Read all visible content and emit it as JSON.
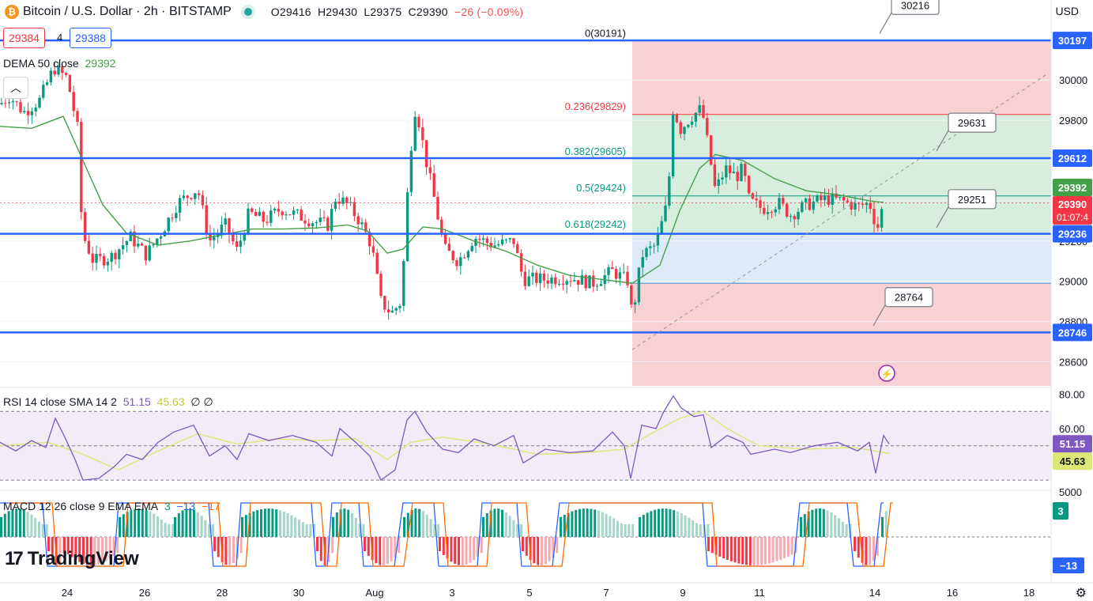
{
  "header": {
    "symbol": "Bitcoin / U.S. Dollar · 2h · BITSTAMP",
    "coin_glyph": "₿",
    "open": "O29416",
    "high": "H29430",
    "low": "L29375",
    "close": "C29390",
    "change": "−26 (−0.09%)",
    "bid": "29384",
    "spread": "4",
    "ask": "29388",
    "currency": "USD",
    "dema_name": "DEMA 50 close",
    "dema_value": "29392",
    "rsi_name": "RSI 14 close SMA 14 2",
    "rsi_value": "51.15",
    "rsi_sma": "45.63",
    "rsi_extra": "∅ ∅",
    "macd_name": "MACD 12 26 close 9 EMA EMA",
    "macd_hist": "3",
    "macd_line": "−13",
    "macd_signal": "−17"
  },
  "colors": {
    "blue": "#2962ff",
    "green": "#089981",
    "red": "#f23645",
    "dema": "#43a047",
    "rsi": "#7e57c2",
    "rsi_sma": "#dce775",
    "accent": "#2962ff"
  },
  "chart_data": {
    "type": "candlestick",
    "instrument": "Bitcoin / U.S. Dollar",
    "interval": "2h",
    "exchange": "BITSTAMP",
    "x_ticks": [
      "24",
      "26",
      "28",
      "30",
      "Aug",
      "3",
      "5",
      "7",
      "9",
      "11",
      "14",
      "16",
      "18"
    ],
    "y_ticks": [
      30000,
      29800,
      29600,
      29400,
      29200,
      29000,
      28800,
      28600
    ],
    "ylim": [
      28480,
      30280
    ],
    "horizontal_levels": [
      30197,
      29612,
      29236,
      28746
    ],
    "last_price": 29390,
    "countdown": "01:07:4",
    "dema_last": 29392,
    "fibonacci": [
      {
        "label": "0(30191)",
        "price": 30191
      },
      {
        "label": "0.236(29829)",
        "price": 29829
      },
      {
        "label": "0.382(29605)",
        "price": 29605
      },
      {
        "label": "0.5(29424)",
        "price": 29424
      },
      {
        "label": "0.618(29242)",
        "price": 29242
      }
    ],
    "callouts": [
      30216,
      29631,
      29251,
      28764
    ],
    "close_path": [
      {
        "x": 0,
        "y": 29880
      },
      {
        "x": 12,
        "y": 29920
      },
      {
        "x": 30,
        "y": 29840
      },
      {
        "x": 50,
        "y": 29900
      },
      {
        "x": 68,
        "y": 30060
      },
      {
        "x": 85,
        "y": 30010
      },
      {
        "x": 98,
        "y": 29760
      },
      {
        "x": 104,
        "y": 29240
      },
      {
        "x": 118,
        "y": 29100
      },
      {
        "x": 140,
        "y": 29120
      },
      {
        "x": 165,
        "y": 29220
      },
      {
        "x": 185,
        "y": 29130
      },
      {
        "x": 205,
        "y": 29250
      },
      {
        "x": 225,
        "y": 29390
      },
      {
        "x": 250,
        "y": 29460
      },
      {
        "x": 265,
        "y": 29200
      },
      {
        "x": 285,
        "y": 29280
      },
      {
        "x": 300,
        "y": 29150
      },
      {
        "x": 315,
        "y": 29340
      },
      {
        "x": 335,
        "y": 29300
      },
      {
        "x": 355,
        "y": 29360
      },
      {
        "x": 375,
        "y": 29330
      },
      {
        "x": 395,
        "y": 29300
      },
      {
        "x": 415,
        "y": 29280
      },
      {
        "x": 425,
        "y": 29420
      },
      {
        "x": 440,
        "y": 29380
      },
      {
        "x": 455,
        "y": 29300
      },
      {
        "x": 470,
        "y": 29180
      },
      {
        "x": 482,
        "y": 28900
      },
      {
        "x": 495,
        "y": 28840
      },
      {
        "x": 508,
        "y": 28900
      },
      {
        "x": 518,
        "y": 29600
      },
      {
        "x": 526,
        "y": 29880
      },
      {
        "x": 538,
        "y": 29620
      },
      {
        "x": 550,
        "y": 29400
      },
      {
        "x": 562,
        "y": 29160
      },
      {
        "x": 580,
        "y": 29100
      },
      {
        "x": 600,
        "y": 29220
      },
      {
        "x": 625,
        "y": 29180
      },
      {
        "x": 650,
        "y": 29200
      },
      {
        "x": 662,
        "y": 29010
      },
      {
        "x": 690,
        "y": 29010
      },
      {
        "x": 720,
        "y": 29020
      },
      {
        "x": 750,
        "y": 28990
      },
      {
        "x": 775,
        "y": 29050
      },
      {
        "x": 795,
        "y": 29000
      },
      {
        "x": 800,
        "y": 28820
      },
      {
        "x": 812,
        "y": 29130
      },
      {
        "x": 830,
        "y": 29180
      },
      {
        "x": 845,
        "y": 29400
      },
      {
        "x": 852,
        "y": 29880
      },
      {
        "x": 860,
        "y": 29750
      },
      {
        "x": 875,
        "y": 29820
      },
      {
        "x": 888,
        "y": 29860
      },
      {
        "x": 898,
        "y": 29620
      },
      {
        "x": 905,
        "y": 29450
      },
      {
        "x": 918,
        "y": 29560
      },
      {
        "x": 932,
        "y": 29520
      },
      {
        "x": 940,
        "y": 29560
      },
      {
        "x": 948,
        "y": 29400
      },
      {
        "x": 965,
        "y": 29360
      },
      {
        "x": 985,
        "y": 29390
      },
      {
        "x": 1000,
        "y": 29330
      },
      {
        "x": 1020,
        "y": 29380
      },
      {
        "x": 1045,
        "y": 29410
      },
      {
        "x": 1065,
        "y": 29400
      },
      {
        "x": 1085,
        "y": 29370
      },
      {
        "x": 1100,
        "y": 29390
      },
      {
        "x": 1110,
        "y": 29260
      },
      {
        "x": 1118,
        "y": 29390
      }
    ],
    "dema_path": [
      {
        "x": 0,
        "y": 29770
      },
      {
        "x": 40,
        "y": 29760
      },
      {
        "x": 80,
        "y": 29820
      },
      {
        "x": 105,
        "y": 29600
      },
      {
        "x": 130,
        "y": 29380
      },
      {
        "x": 160,
        "y": 29240
      },
      {
        "x": 200,
        "y": 29180
      },
      {
        "x": 240,
        "y": 29200
      },
      {
        "x": 280,
        "y": 29230
      },
      {
        "x": 320,
        "y": 29260
      },
      {
        "x": 360,
        "y": 29260
      },
      {
        "x": 400,
        "y": 29265
      },
      {
        "x": 440,
        "y": 29280
      },
      {
        "x": 465,
        "y": 29250
      },
      {
        "x": 490,
        "y": 29140
      },
      {
        "x": 510,
        "y": 29160
      },
      {
        "x": 535,
        "y": 29270
      },
      {
        "x": 560,
        "y": 29260
      },
      {
        "x": 600,
        "y": 29200
      },
      {
        "x": 640,
        "y": 29150
      },
      {
        "x": 680,
        "y": 29080
      },
      {
        "x": 720,
        "y": 29030
      },
      {
        "x": 760,
        "y": 29010
      },
      {
        "x": 800,
        "y": 28990
      },
      {
        "x": 835,
        "y": 29080
      },
      {
        "x": 860,
        "y": 29350
      },
      {
        "x": 885,
        "y": 29560
      },
      {
        "x": 905,
        "y": 29630
      },
      {
        "x": 940,
        "y": 29600
      },
      {
        "x": 980,
        "y": 29510
      },
      {
        "x": 1020,
        "y": 29450
      },
      {
        "x": 1060,
        "y": 29430
      },
      {
        "x": 1100,
        "y": 29400
      },
      {
        "x": 1118,
        "y": 29392
      }
    ],
    "rsi": {
      "levels": [
        70,
        50,
        30
      ],
      "ticks": [
        80,
        60
      ],
      "ylim": [
        25,
        83
      ],
      "last": 51.15,
      "sma_last": 45.63,
      "path": [
        {
          "x": 0,
          "y": 52
        },
        {
          "x": 20,
          "y": 47
        },
        {
          "x": 40,
          "y": 53
        },
        {
          "x": 58,
          "y": 49
        },
        {
          "x": 70,
          "y": 66
        },
        {
          "x": 82,
          "y": 55
        },
        {
          "x": 95,
          "y": 42
        },
        {
          "x": 105,
          "y": 30
        },
        {
          "x": 125,
          "y": 31
        },
        {
          "x": 145,
          "y": 38
        },
        {
          "x": 160,
          "y": 45
        },
        {
          "x": 180,
          "y": 42
        },
        {
          "x": 200,
          "y": 52
        },
        {
          "x": 220,
          "y": 58
        },
        {
          "x": 245,
          "y": 62
        },
        {
          "x": 265,
          "y": 44
        },
        {
          "x": 285,
          "y": 50
        },
        {
          "x": 300,
          "y": 42
        },
        {
          "x": 315,
          "y": 57
        },
        {
          "x": 340,
          "y": 53
        },
        {
          "x": 370,
          "y": 56
        },
        {
          "x": 400,
          "y": 52
        },
        {
          "x": 420,
          "y": 44
        },
        {
          "x": 430,
          "y": 60
        },
        {
          "x": 450,
          "y": 52
        },
        {
          "x": 468,
          "y": 44
        },
        {
          "x": 482,
          "y": 30
        },
        {
          "x": 500,
          "y": 36
        },
        {
          "x": 515,
          "y": 65
        },
        {
          "x": 525,
          "y": 70
        },
        {
          "x": 540,
          "y": 58
        },
        {
          "x": 560,
          "y": 48
        },
        {
          "x": 580,
          "y": 46
        },
        {
          "x": 600,
          "y": 54
        },
        {
          "x": 625,
          "y": 50
        },
        {
          "x": 650,
          "y": 56
        },
        {
          "x": 662,
          "y": 40
        },
        {
          "x": 690,
          "y": 48
        },
        {
          "x": 720,
          "y": 46
        },
        {
          "x": 750,
          "y": 47
        },
        {
          "x": 775,
          "y": 58
        },
        {
          "x": 790,
          "y": 50
        },
        {
          "x": 798,
          "y": 31
        },
        {
          "x": 812,
          "y": 62
        },
        {
          "x": 830,
          "y": 60
        },
        {
          "x": 840,
          "y": 70
        },
        {
          "x": 852,
          "y": 79
        },
        {
          "x": 862,
          "y": 72
        },
        {
          "x": 878,
          "y": 67
        },
        {
          "x": 890,
          "y": 68
        },
        {
          "x": 900,
          "y": 49
        },
        {
          "x": 920,
          "y": 56
        },
        {
          "x": 940,
          "y": 52
        },
        {
          "x": 950,
          "y": 45
        },
        {
          "x": 980,
          "y": 48
        },
        {
          "x": 1000,
          "y": 46
        },
        {
          "x": 1030,
          "y": 50
        },
        {
          "x": 1060,
          "y": 52
        },
        {
          "x": 1085,
          "y": 47
        },
        {
          "x": 1100,
          "y": 52
        },
        {
          "x": 1108,
          "y": 34
        },
        {
          "x": 1118,
          "y": 56
        },
        {
          "x": 1125,
          "y": 51
        }
      ],
      "sma_path": [
        {
          "x": 0,
          "y": 50
        },
        {
          "x": 60,
          "y": 52
        },
        {
          "x": 100,
          "y": 46
        },
        {
          "x": 150,
          "y": 36
        },
        {
          "x": 200,
          "y": 47
        },
        {
          "x": 250,
          "y": 57
        },
        {
          "x": 300,
          "y": 51
        },
        {
          "x": 350,
          "y": 54
        },
        {
          "x": 400,
          "y": 53
        },
        {
          "x": 450,
          "y": 54
        },
        {
          "x": 490,
          "y": 42
        },
        {
          "x": 520,
          "y": 52
        },
        {
          "x": 560,
          "y": 55
        },
        {
          "x": 620,
          "y": 51
        },
        {
          "x": 680,
          "y": 45
        },
        {
          "x": 740,
          "y": 46
        },
        {
          "x": 790,
          "y": 48
        },
        {
          "x": 820,
          "y": 56
        },
        {
          "x": 860,
          "y": 66
        },
        {
          "x": 890,
          "y": 70
        },
        {
          "x": 920,
          "y": 60
        },
        {
          "x": 960,
          "y": 50
        },
        {
          "x": 1020,
          "y": 48
        },
        {
          "x": 1080,
          "y": 49
        },
        {
          "x": 1125,
          "y": 45.6
        }
      ]
    },
    "macd": {
      "ticks": [
        "5000"
      ],
      "last_hist": 3,
      "last_macd": -13,
      "last_signal": -17,
      "hist_blocks": [
        {
          "from": 0,
          "to": 60,
          "sign": 1
        },
        {
          "from": 60,
          "to": 80,
          "sign": -1
        },
        {
          "from": 80,
          "to": 150,
          "sign": -1
        },
        {
          "from": 150,
          "to": 220,
          "sign": 1
        },
        {
          "from": 220,
          "to": 270,
          "sign": 1
        },
        {
          "from": 270,
          "to": 305,
          "sign": -1
        },
        {
          "from": 305,
          "to": 400,
          "sign": 1
        },
        {
          "from": 400,
          "to": 420,
          "sign": -1
        },
        {
          "from": 420,
          "to": 460,
          "sign": 1
        },
        {
          "from": 460,
          "to": 505,
          "sign": -1
        },
        {
          "from": 510,
          "to": 555,
          "sign": 1
        },
        {
          "from": 555,
          "to": 610,
          "sign": -1
        },
        {
          "from": 610,
          "to": 660,
          "sign": 1
        },
        {
          "from": 660,
          "to": 705,
          "sign": -1
        },
        {
          "from": 708,
          "to": 800,
          "sign": 1
        },
        {
          "from": 808,
          "to": 895,
          "sign": 1
        },
        {
          "from": 895,
          "to": 1010,
          "sign": -1
        },
        {
          "from": 1012,
          "to": 1078,
          "sign": 1
        },
        {
          "from": 1080,
          "to": 1112,
          "sign": -1
        },
        {
          "from": 1115,
          "to": 1124,
          "sign": 1
        }
      ]
    }
  }
}
